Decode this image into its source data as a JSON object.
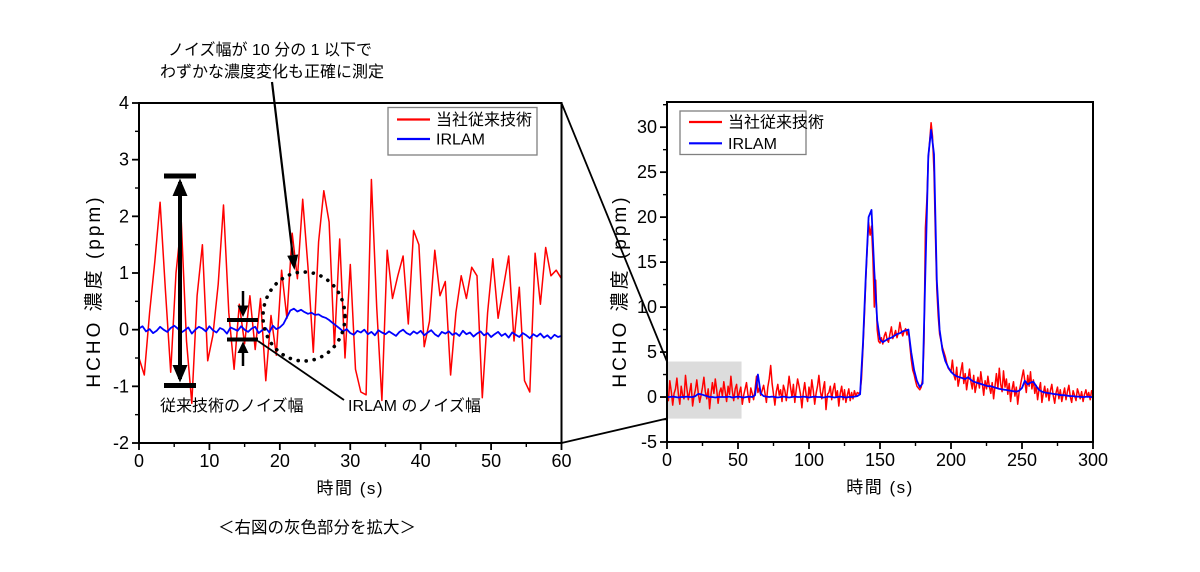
{
  "page": {
    "background": "#ffffff"
  },
  "caption": "＜右図の灰色部分を拡大＞",
  "annotations": {
    "noise_note_line1": "ノイズ幅が 10 分の 1 以下で",
    "noise_note_line2": "わずかな濃度変化も正確に測定",
    "conventional_noise_label": "従来技術のノイズ幅",
    "irlam_noise_label": "IRLAM のノイズ幅"
  },
  "colors": {
    "conventional": "#ff0000",
    "irlam": "#0000ff",
    "annotation": "#000000",
    "highlight_box": "#dcdcdc",
    "legend_border": "#808080"
  },
  "chart_data": [
    {
      "id": "zoomed-view",
      "type": "line",
      "xlabel": "時間 (s)",
      "ylabel": "HCHO 濃度 (ppm)",
      "xlim": [
        0,
        60
      ],
      "ylim": [
        -2,
        4
      ],
      "xticks": [
        0,
        10,
        20,
        30,
        40,
        50,
        60
      ],
      "yticks": [
        -2,
        -1,
        0,
        1,
        2,
        3,
        4
      ],
      "x_minor_step": 5,
      "y_minor_step": 0.5,
      "legend_position": "top-right",
      "grid": false,
      "series": [
        {
          "name": "当社従来技術",
          "color": "#ff0000",
          "x_start": 0,
          "x_step": 0.75,
          "values": [
            -0.5,
            -0.8,
            0.3,
            1.2,
            2.25,
            0.7,
            -0.75,
            1.0,
            1.9,
            -0.2,
            -1.3,
            0.6,
            1.5,
            -0.55,
            -0.1,
            0.8,
            2.2,
            0.3,
            -0.7,
            0.45,
            -0.25,
            0.6,
            -0.35,
            0.55,
            -0.9,
            0.25,
            -0.45,
            1.05,
            0.2,
            1.7,
            0.9,
            2.3,
            1.1,
            -0.4,
            1.55,
            2.45,
            1.9,
            -0.3,
            1.6,
            -0.5,
            1.15,
            -0.7,
            -1.1,
            -1.15,
            2.65,
            0.4,
            -1.25,
            1.4,
            0.55,
            0.95,
            1.3,
            0.1,
            1.75,
            1.5,
            -0.3,
            0.15,
            1.4,
            0.6,
            0.85,
            -0.8,
            0.3,
            0.95,
            0.55,
            1.1,
            0.95,
            -1.2,
            0.3,
            1.25,
            0.2,
            0.75,
            1.3,
            -0.2,
            0.75,
            -0.9,
            -1.1,
            1.35,
            0.45,
            1.45,
            0.95,
            1.05,
            0.9
          ]
        },
        {
          "name": "IRLAM",
          "color": "#0000ff",
          "x_start": 0,
          "x_step": 0.5,
          "values": [
            0.02,
            0.06,
            -0.03,
            0.01,
            -0.06,
            -0.02,
            0.05,
            0.0,
            -0.04,
            0.03,
            0.07,
            0.02,
            -0.05,
            -0.01,
            0.04,
            -0.07,
            0.0,
            0.05,
            0.02,
            -0.03,
            0.06,
            -0.01,
            -0.05,
            0.03,
            0.0,
            -0.07,
            0.04,
            0.01,
            -0.02,
            0.06,
            0.0,
            -0.04,
            0.02,
            0.05,
            -0.06,
            -0.01,
            0.03,
            -0.05,
            0.07,
            0.01,
            0.04,
            0.1,
            0.22,
            0.34,
            0.37,
            0.32,
            0.35,
            0.31,
            0.28,
            0.3,
            0.26,
            0.27,
            0.23,
            0.21,
            0.17,
            0.12,
            0.07,
            0.02,
            -0.03,
            0.01,
            -0.06,
            -0.09,
            -0.02,
            -0.05,
            0.0,
            -0.08,
            -0.04,
            -0.1,
            -0.01,
            -0.05,
            -0.08,
            -0.03,
            -0.07,
            -0.11,
            -0.04,
            0.0,
            -0.06,
            -0.09,
            -0.03,
            -0.07,
            -0.02,
            -0.1,
            -0.05,
            -0.01,
            -0.08,
            -0.12,
            -0.04,
            -0.07,
            -0.03,
            -0.09,
            -0.06,
            -0.11,
            -0.02,
            -0.08,
            -0.05,
            -0.12,
            -0.07,
            -0.03,
            -0.1,
            -0.06,
            -0.13,
            -0.08,
            -0.04,
            -0.11,
            -0.07,
            -0.14,
            -0.05,
            -0.09,
            -0.13,
            -0.06,
            -0.1,
            -0.15,
            -0.08,
            -0.12,
            -0.07,
            -0.14,
            -0.1,
            -0.16,
            -0.09,
            -0.13,
            -0.11
          ]
        }
      ]
    },
    {
      "id": "full-view",
      "type": "line",
      "xlabel": "時間 (s)",
      "ylabel": "HCHO 濃度 (ppm)",
      "xlim": [
        0,
        300
      ],
      "ylim": [
        -5,
        32.8
      ],
      "xticks": [
        0,
        50,
        100,
        150,
        200,
        250,
        300
      ],
      "yticks": [
        -5,
        0,
        5,
        10,
        15,
        20,
        25,
        30
      ],
      "x_minor_step": 25,
      "y_minor_step": 2.5,
      "legend_position": "top-left",
      "grid": false,
      "highlight_region": {
        "x0": 0,
        "x1": 52.5,
        "y0": -2.4,
        "y1": 3.95
      },
      "series": [
        {
          "name": "当社従来技術",
          "color": "#ff0000",
          "x_start": 0,
          "x_step": 1,
          "values": [
            0.3,
            -0.4,
            1.8,
            0.6,
            -0.9,
            0.4,
            0.9,
            2.1,
            0.3,
            -0.8,
            1.2,
            0.2,
            -0.2,
            2.4,
            0.9,
            -0.3,
            0.6,
            1.5,
            -1.0,
            0.1,
            0.8,
            1.9,
            0.5,
            -0.6,
            0.2,
            1.1,
            2.2,
            0.6,
            -0.2,
            0.9,
            -1.3,
            0.3,
            1.6,
            0.4,
            2.0,
            0.8,
            -0.7,
            0.5,
            1.0,
            0.1,
            1.7,
            0.6,
            -0.5,
            1.2,
            0.3,
            2.3,
            0.7,
            -0.4,
            0.9,
            1.4,
            -0.2,
            0.5,
            1.1,
            -0.8,
            0.2,
            0.9,
            1.6,
            0.3,
            -0.6,
            1.0,
            0.4,
            -0.3,
            0.8,
            2.3,
            0.5,
            1.0,
            0.2,
            0.7,
            1.3,
            0.4,
            -0.6,
            1.1,
            2.0,
            3.5,
            1.5,
            0.3,
            -0.9,
            0.6,
            1.4,
            0.2,
            0.8,
            -0.5,
            1.3,
            0.7,
            -0.4,
            0.9,
            2.3,
            1.1,
            0.0,
            1.4,
            -0.6,
            0.8,
            2.0,
            1.2,
            0.3,
            -1.2,
            0.5,
            1.6,
            0.2,
            -0.5,
            1.1,
            0.0,
            1.9,
            0.7,
            -0.8,
            0.4,
            1.2,
            2.4,
            0.6,
            -0.2,
            0.9,
            1.7,
            -1.4,
            0.3,
            0.5,
            1.2,
            -0.3,
            0.8,
            1.5,
            0.0,
            0.7,
            -1.0,
            0.4,
            1.2,
            -0.3,
            0.8,
            -0.6,
            0.2,
            0.9,
            -0.4,
            0.5,
            -0.2,
            0.7,
            0.1,
            0.5,
            0.4,
            0.5,
            2.0,
            5.5,
            9.0,
            13.0,
            16.5,
            19.4,
            18.0,
            19.0,
            15.5,
            10.0,
            13.0,
            7.5,
            6.2,
            6.0,
            6.6,
            5.9,
            6.8,
            7.2,
            6.4,
            6.1,
            7.0,
            7.8,
            6.5,
            6.9,
            7.4,
            6.6,
            7.2,
            8.3,
            7.4,
            6.8,
            7.3,
            7.6,
            6.9,
            7.5,
            5.8,
            4.2,
            3.0,
            2.5,
            1.8,
            1.2,
            1.0,
            0.8,
            1.1,
            2.0,
            6.0,
            18.8,
            22.0,
            26.5,
            28.5,
            30.5,
            29.0,
            25.0,
            18.0,
            12.0,
            9.0,
            7.0,
            6.2,
            5.5,
            5.0,
            4.5,
            3.8,
            3.2,
            3.0,
            2.8,
            4.1,
            2.5,
            1.9,
            3.3,
            1.2,
            2.0,
            2.9,
            3.8,
            1.5,
            2.6,
            0.8,
            1.9,
            3.1,
            1.7,
            0.9,
            2.4,
            0.5,
            1.4,
            2.2,
            1.0,
            2.8,
            1.6,
            0.2,
            1.8,
            0.9,
            2.3,
            1.2,
            0.4,
            1.6,
            -0.2,
            1.2,
            2.6,
            1.0,
            3.2,
            1.4,
            0.6,
            2.9,
            1.1,
            2.0,
            0.3,
            1.5,
            -0.5,
            0.9,
            1.7,
            0.1,
            1.1,
            -0.8,
            0.6,
            1.4,
            2.2,
            3.0,
            1.8,
            0.5,
            2.4,
            1.2,
            2.8,
            0.9,
            1.9,
            0.4,
            1.3,
            -0.3,
            0.8,
            1.6,
            -0.6,
            0.4,
            1.2,
            0.0,
            0.9,
            -0.4,
            0.7,
            1.4,
            0.2,
            -0.7,
            0.5,
            1.1,
            -0.2,
            0.8,
            -0.5,
            0.3,
            1.0,
            -0.3,
            0.6,
            1.3,
            0.0,
            -0.6,
            0.7,
            0.2,
            -0.4,
            0.9,
            0.4,
            -0.2,
            0.6,
            -0.5,
            0.3,
            0.8,
            0.0,
            0.5,
            -0.3,
            0.7,
            0.4
          ]
        },
        {
          "name": "IRLAM",
          "color": "#0000ff",
          "x_start": 0,
          "x_step": 2,
          "values": [
            0,
            0,
            0.05,
            0,
            -0.05,
            0,
            0,
            0.05,
            0,
            0,
            0.1,
            0.35,
            0.3,
            0.2,
            0.1,
            0,
            0,
            -0.05,
            0,
            0,
            0,
            0,
            0.05,
            -0.05,
            0,
            0.05,
            0,
            -0.05,
            0,
            0.05,
            0,
            0.2,
            2.5,
            0.4,
            0.1,
            0.05,
            0,
            0.05,
            0,
            -0.05,
            0,
            0.05,
            0,
            -0.05,
            0,
            0.05,
            0,
            0,
            0.05,
            0,
            -0.05,
            0,
            0.05,
            0,
            0,
            -0.05,
            0,
            0.05,
            0,
            -0.05,
            0,
            0.05,
            0,
            -0.05,
            0,
            0,
            0.05,
            0.1,
            0.3,
            6.0,
            13.5,
            20.0,
            20.8,
            14.0,
            8.5,
            6.4,
            6.1,
            6.3,
            6.5,
            6.6,
            6.8,
            7.0,
            7.1,
            7.3,
            7.4,
            7.5,
            5.0,
            3.0,
            1.8,
            1.1,
            1.5,
            14.0,
            26.8,
            29.7,
            27.0,
            13.0,
            7.5,
            5.2,
            4.0,
            3.3,
            2.8,
            2.5,
            2.3,
            2.2,
            2.1,
            2.0,
            2.2,
            1.9,
            1.7,
            1.6,
            1.5,
            1.4,
            1.3,
            1.2,
            1.2,
            1.1,
            1.0,
            0.9,
            0.85,
            0.8,
            0.75,
            0.7,
            0.65,
            0.6,
            0.7,
            1.0,
            1.8,
            1.4,
            1.6,
            1.7,
            1.2,
            0.8,
            0.6,
            0.5,
            0.45,
            0.4,
            0.35,
            0.3,
            0.25,
            0.2,
            0.2,
            0.15,
            0.1,
            0.1,
            0.05,
            0.05,
            0,
            0,
            0.05,
            0,
            0
          ]
        }
      ]
    }
  ]
}
